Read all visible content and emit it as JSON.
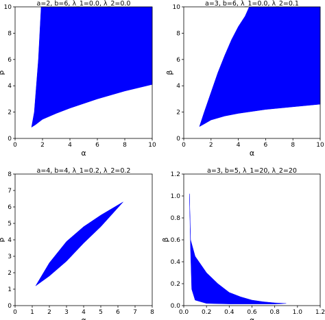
{
  "chart_data": [
    {
      "type": "area",
      "title": "a=2, b=6, λ_1=0.0, λ_2=0.0",
      "xlabel": "α",
      "ylabel": "β",
      "color": "#0000ff",
      "x": [
        1.2,
        1.4,
        1.55,
        1.7,
        1.8,
        1.9,
        10,
        10,
        8,
        6,
        4,
        3,
        2,
        1.5
      ],
      "values": [
        0.85,
        2,
        4,
        6,
        8,
        10,
        10,
        4.1,
        3.6,
        3.0,
        2.3,
        1.9,
        1.45,
        1.05
      ],
      "xlim": [
        0,
        10
      ],
      "ylim": [
        0,
        10
      ],
      "xticks": [
        0,
        2,
        4,
        6,
        8,
        10
      ],
      "yticks": [
        0,
        2,
        4,
        6,
        8,
        10
      ]
    },
    {
      "type": "area",
      "title": "a=3, b=6, λ_1=0.0, λ_2=0.1",
      "xlabel": "α",
      "ylabel": "β",
      "color": "#0000ff",
      "x": [
        1.15,
        1.5,
        2,
        2.5,
        3,
        3.5,
        4,
        4.5,
        4.8,
        10,
        10,
        8,
        6,
        4,
        3,
        2,
        1.5
      ],
      "values": [
        0.9,
        2,
        3.5,
        5,
        6.3,
        7.5,
        8.5,
        9.3,
        10,
        10,
        2.6,
        2.4,
        2.2,
        1.9,
        1.7,
        1.4,
        1.1
      ],
      "xlim": [
        0,
        10
      ],
      "ylim": [
        0,
        10
      ],
      "xticks": [
        0,
        2,
        4,
        6,
        8,
        10
      ],
      "yticks": [
        0,
        2,
        4,
        6,
        8,
        10
      ]
    },
    {
      "type": "area",
      "title": "a=4, b=4, λ_1=0.2, λ_2=0.2",
      "xlabel": "α",
      "ylabel": "β",
      "color": "#0000ff",
      "x": [
        1.2,
        2,
        3,
        4,
        5,
        6.3,
        5,
        4,
        3,
        2
      ],
      "values": [
        1.2,
        2.6,
        3.9,
        4.8,
        5.5,
        6.3,
        4.8,
        3.8,
        2.7,
        1.8
      ],
      "xlim": [
        0,
        8
      ],
      "ylim": [
        0,
        8
      ],
      "xticks": [
        0,
        1,
        2,
        3,
        4,
        5,
        6,
        7,
        8
      ],
      "yticks": [
        0,
        1,
        2,
        3,
        4,
        5,
        6,
        7,
        8
      ]
    },
    {
      "type": "area",
      "title": "a=3, b=5, λ_1=20, λ_2=20",
      "xlabel": "α",
      "ylabel": "β",
      "color": "#0000ff",
      "x": [
        0.05,
        0.06,
        0.1,
        0.2,
        0.3,
        0.4,
        0.5,
        0.6,
        0.7,
        0.8,
        0.9,
        0.8,
        0.6,
        0.4,
        0.2,
        0.1,
        0.07,
        0.06
      ],
      "values": [
        1.02,
        0.6,
        0.45,
        0.3,
        0.2,
        0.12,
        0.08,
        0.05,
        0.035,
        0.025,
        0.02,
        0.015,
        0.015,
        0.015,
        0.02,
        0.05,
        0.15,
        0.5
      ],
      "xlim": [
        0,
        1.2
      ],
      "ylim": [
        0,
        1.2
      ],
      "xticks": [
        {
          "value": 0,
          "label": "0.0"
        },
        0.2,
        0.4,
        0.6,
        0.8,
        {
          "value": 1,
          "label": "1.0"
        },
        1.2
      ],
      "yticks": [
        {
          "value": 0,
          "label": "0.0"
        },
        0.2,
        0.4,
        0.6,
        0.8,
        {
          "value": 1,
          "label": "1.0"
        },
        1.2
      ]
    }
  ]
}
